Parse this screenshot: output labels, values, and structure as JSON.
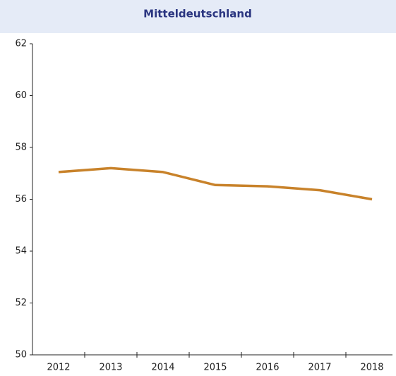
{
  "chart_data": {
    "type": "line",
    "title": "Mitteldeutschland",
    "categories": [
      "2012",
      "2013",
      "2014",
      "2015",
      "2016",
      "2017",
      "2018"
    ],
    "series": [
      {
        "name": "Mitteldeutschland",
        "color": "#c8822a",
        "values": [
          57.05,
          57.2,
          57.05,
          56.55,
          56.5,
          56.35,
          56.0
        ]
      }
    ],
    "ylim": [
      50,
      62
    ],
    "yticks": [
      50,
      52,
      54,
      56,
      58,
      60,
      62
    ]
  }
}
